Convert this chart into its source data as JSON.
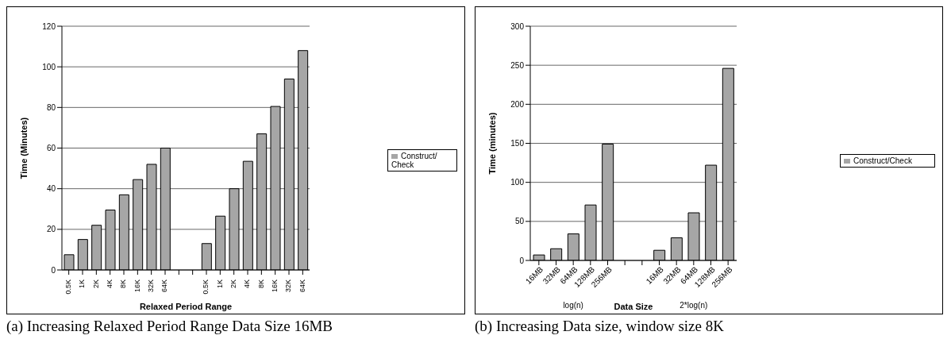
{
  "chart_data": [
    {
      "type": "bar",
      "xlabel": "Relaxed Period Range",
      "ylabel": "Time (Minutes)",
      "categories": [
        "0.5K",
        "1K",
        "2K",
        "4K",
        "8K",
        "16K",
        "32K",
        "64K",
        null,
        null,
        "0.5K",
        "1K",
        "2K",
        "4K",
        "8K",
        "16K",
        "32K",
        "64K"
      ],
      "series": [
        {
          "name": "Construct/ Check",
          "color": "#a6a6a6",
          "values": [
            7.5,
            15,
            22,
            29.5,
            37,
            44.5,
            52,
            60,
            null,
            null,
            13,
            26.5,
            40,
            53.5,
            67,
            80.5,
            94,
            108
          ]
        }
      ],
      "ylim": [
        0,
        120
      ],
      "yticks": [
        0,
        20,
        40,
        60,
        80,
        100,
        120
      ],
      "grid": "y",
      "legend": "right",
      "annotations": [
        "(a) Increasing Relaxed Period Range Data Size 16MB"
      ]
    },
    {
      "type": "bar",
      "xlabel": "Data Size",
      "ylabel": "Time (minutes)",
      "categories": [
        "16MB",
        "32MB",
        "64MB",
        "128MB",
        "256MB",
        null,
        null,
        "16MB",
        "32MB",
        "64MB",
        "128MB",
        "256MB"
      ],
      "series": [
        {
          "name": "Construct/Check",
          "color": "#a6a6a6",
          "values": [
            7,
            15,
            34,
            71,
            149,
            null,
            null,
            13,
            29,
            61,
            122,
            246
          ]
        }
      ],
      "ylim": [
        0,
        300
      ],
      "yticks": [
        0,
        50,
        100,
        150,
        200,
        250,
        300
      ],
      "grid": "y",
      "legend": "right",
      "annotations": [
        "(b) Increasing Data size, window size 8K",
        "log(n)",
        "2*log(n)"
      ]
    }
  ]
}
